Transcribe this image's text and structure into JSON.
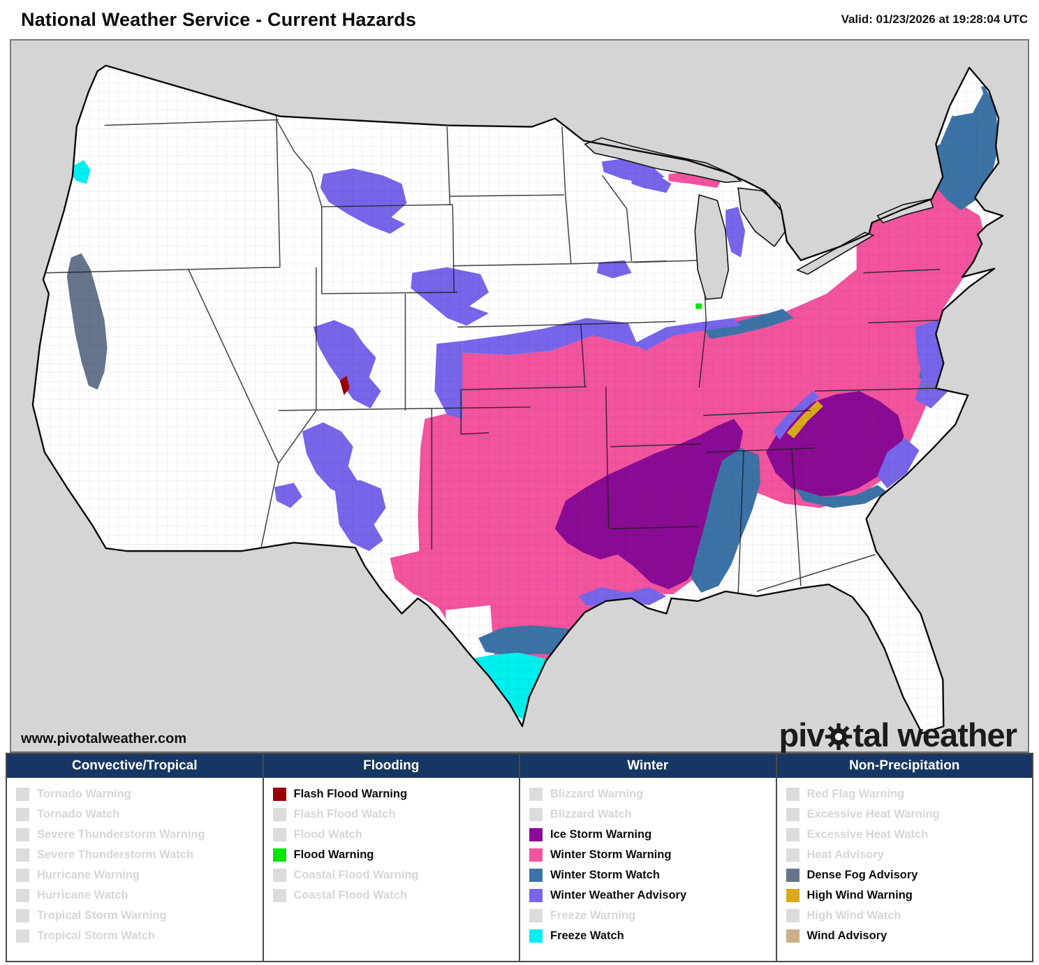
{
  "header": {
    "title": "National Weather Service - Current Hazards",
    "valid_label": "Valid: 01/23/2026 at 19:28:04 UTC"
  },
  "map": {
    "watermark": "www.pivotalweather.com",
    "logo_pre": "piv",
    "logo_post": "tal weather",
    "hazard_colors": {
      "flash_flood_warning": "#990000",
      "flood_warning": "#00e50a",
      "ice_storm_warning": "#8a0b94",
      "winter_storm_warning": "#f2549e",
      "winter_storm_watch": "#3c73a6",
      "winter_weather_advisory": "#7766ea",
      "freeze_watch": "#00efef",
      "dense_fog_advisory": "#66758d",
      "high_wind_warning": "#d9a91b",
      "wind_advisory": "#ceb189"
    }
  },
  "legend": {
    "inactive_swatch": "#dcdcdc",
    "columns": [
      {
        "title": "Convective/Tropical",
        "items": [
          {
            "label": "Tornado Warning",
            "active": false,
            "color": null
          },
          {
            "label": "Tornado Watch",
            "active": false,
            "color": null
          },
          {
            "label": "Severe Thunderstorm Warning",
            "active": false,
            "color": null
          },
          {
            "label": "Severe Thunderstorm Watch",
            "active": false,
            "color": null
          },
          {
            "label": "Hurricane Warning",
            "active": false,
            "color": null
          },
          {
            "label": "Hurricane Watch",
            "active": false,
            "color": null
          },
          {
            "label": "Tropical Storm Warning",
            "active": false,
            "color": null
          },
          {
            "label": "Tropical Storm Watch",
            "active": false,
            "color": null
          }
        ]
      },
      {
        "title": "Flooding",
        "items": [
          {
            "label": "Flash Flood Warning",
            "active": true,
            "color": "#990000"
          },
          {
            "label": "Flash Flood Watch",
            "active": false,
            "color": null
          },
          {
            "label": "Flood Watch",
            "active": false,
            "color": null
          },
          {
            "label": "Flood Warning",
            "active": true,
            "color": "#00e50a"
          },
          {
            "label": "Coastal Flood Warning",
            "active": false,
            "color": null
          },
          {
            "label": "Coastal Flood Watch",
            "active": false,
            "color": null
          }
        ]
      },
      {
        "title": "Winter",
        "items": [
          {
            "label": "Blizzard Warning",
            "active": false,
            "color": null
          },
          {
            "label": "Blizzard Watch",
            "active": false,
            "color": null
          },
          {
            "label": "Ice Storm Warning",
            "active": true,
            "color": "#8a0b94"
          },
          {
            "label": "Winter Storm Warning",
            "active": true,
            "color": "#f2549e"
          },
          {
            "label": "Winter Storm Watch",
            "active": true,
            "color": "#3c73a6"
          },
          {
            "label": "Winter Weather Advisory",
            "active": true,
            "color": "#7766ea"
          },
          {
            "label": "Freeze Warning",
            "active": false,
            "color": null
          },
          {
            "label": "Freeze Watch",
            "active": true,
            "color": "#00efef"
          }
        ]
      },
      {
        "title": "Non-Precipitation",
        "items": [
          {
            "label": "Red Flag Warning",
            "active": false,
            "color": null
          },
          {
            "label": "Excessive Heat Warning",
            "active": false,
            "color": null
          },
          {
            "label": "Excessive Heat Watch",
            "active": false,
            "color": null
          },
          {
            "label": "Heat Advisory",
            "active": false,
            "color": null
          },
          {
            "label": "Dense Fog Advisory",
            "active": true,
            "color": "#66758d"
          },
          {
            "label": "High Wind Warning",
            "active": true,
            "color": "#d9a91b"
          },
          {
            "label": "High Wind Watch",
            "active": false,
            "color": null
          },
          {
            "label": "Wind Advisory",
            "active": true,
            "color": "#ceb189"
          }
        ]
      }
    ]
  }
}
